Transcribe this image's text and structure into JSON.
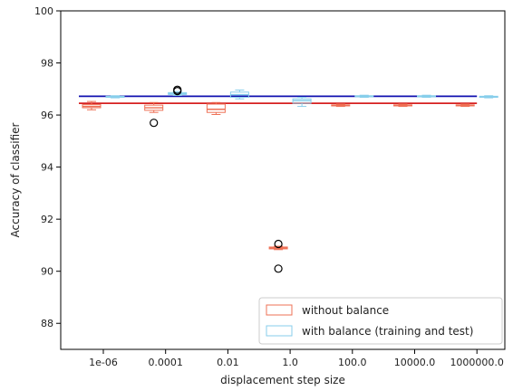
{
  "chart_data": {
    "type": "box",
    "title": "",
    "xlabel": "displacement step size",
    "ylabel": "Accuracy of classifier",
    "ylim": [
      87,
      100
    ],
    "y_ticks": [
      88,
      90,
      92,
      94,
      96,
      98,
      100
    ],
    "categories": [
      "1e-06",
      "0.0001",
      "0.01",
      "1.0",
      "100.0",
      "10000.0",
      "1000000.0"
    ],
    "legend_position": "lower right",
    "series": [
      {
        "name": "without balance",
        "color": "#ee7055",
        "reference_line": {
          "value": 96.45,
          "color": "#d62020"
        },
        "boxes": [
          {
            "category": "1e-06",
            "whislo": 96.2,
            "q1": 96.28,
            "med": 96.33,
            "q3": 96.4,
            "whishi": 96.52,
            "fliers": []
          },
          {
            "category": "0.0001",
            "whislo": 96.1,
            "q1": 96.18,
            "med": 96.28,
            "q3": 96.38,
            "whishi": 96.48,
            "fliers": [
              95.7
            ]
          },
          {
            "category": "0.01",
            "whislo": 96.02,
            "q1": 96.1,
            "med": 96.22,
            "q3": 96.42,
            "whishi": 96.48,
            "fliers": []
          },
          {
            "category": "1.0",
            "whislo": 90.83,
            "q1": 90.86,
            "med": 90.9,
            "q3": 90.93,
            "whishi": 90.96,
            "fliers": [
              91.05,
              90.1
            ]
          },
          {
            "category": "100.0",
            "whislo": 96.33,
            "q1": 96.35,
            "med": 96.37,
            "q3": 96.39,
            "whishi": 96.42,
            "fliers": []
          },
          {
            "category": "10000.0",
            "whislo": 96.33,
            "q1": 96.35,
            "med": 96.37,
            "q3": 96.39,
            "whishi": 96.42,
            "fliers": []
          },
          {
            "category": "1000000.0",
            "whislo": 96.33,
            "q1": 96.35,
            "med": 96.37,
            "q3": 96.39,
            "whishi": 96.42,
            "fliers": []
          }
        ]
      },
      {
        "name": "with balance (training and test)",
        "color": "#87ceeb",
        "reference_line": {
          "value": 96.72,
          "color": "#1010b0"
        },
        "boxes": [
          {
            "category": "1e-06",
            "whislo": 96.66,
            "q1": 96.68,
            "med": 96.7,
            "q3": 96.72,
            "whishi": 96.74,
            "fliers": []
          },
          {
            "category": "0.0001",
            "whislo": 96.75,
            "q1": 96.79,
            "med": 96.82,
            "q3": 96.86,
            "whishi": 96.9,
            "fliers": [
              96.97,
              96.92
            ]
          },
          {
            "category": "0.01",
            "whislo": 96.62,
            "q1": 96.68,
            "med": 96.78,
            "q3": 96.88,
            "whishi": 96.96,
            "fliers": []
          },
          {
            "category": "1.0",
            "whislo": 96.33,
            "q1": 96.45,
            "med": 96.55,
            "q3": 96.62,
            "whishi": 96.68,
            "fliers": []
          },
          {
            "category": "100.0",
            "whislo": 96.68,
            "q1": 96.7,
            "med": 96.72,
            "q3": 96.74,
            "whishi": 96.76,
            "fliers": []
          },
          {
            "category": "10000.0",
            "whislo": 96.68,
            "q1": 96.7,
            "med": 96.72,
            "q3": 96.74,
            "whishi": 96.76,
            "fliers": []
          },
          {
            "category": "1000000.0",
            "whislo": 96.66,
            "q1": 96.68,
            "med": 96.7,
            "q3": 96.72,
            "whishi": 96.74,
            "fliers": []
          }
        ]
      }
    ]
  }
}
